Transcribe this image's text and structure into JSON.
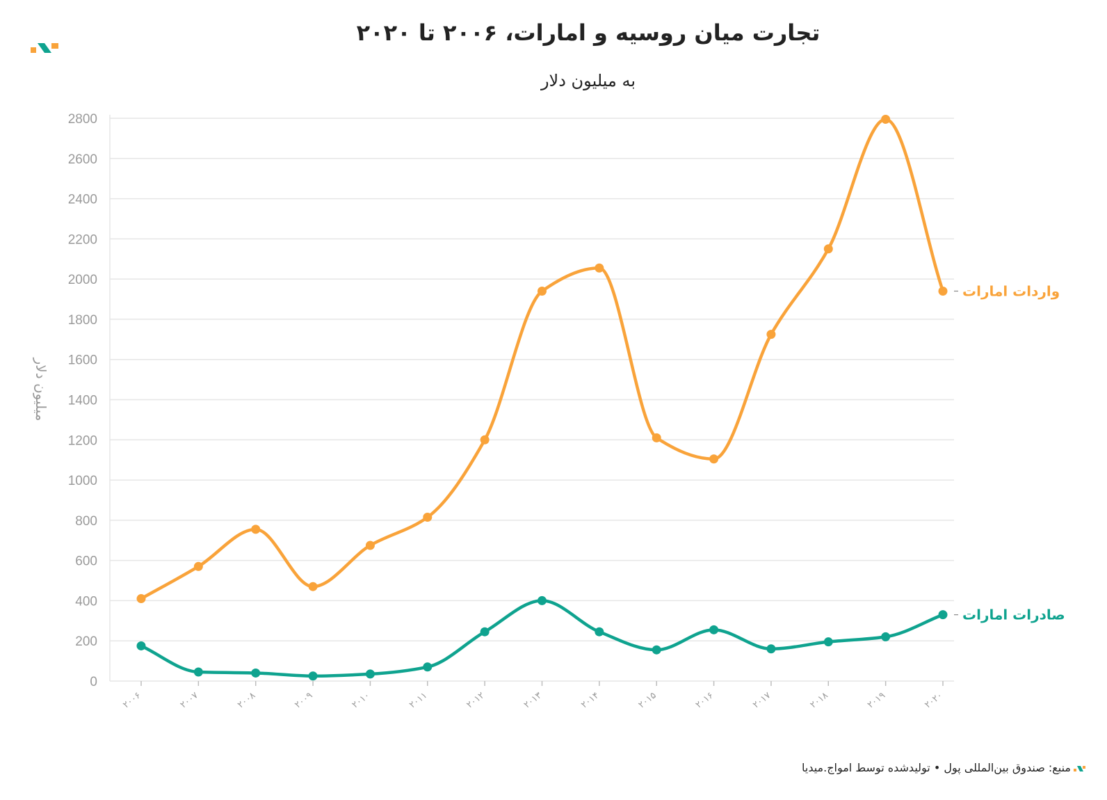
{
  "chart_data": {
    "type": "line",
    "title": "تجارت میان روسیه و امارات، ۲۰۰۶ تا ۲۰۲۰",
    "subtitle": "به میلیون دلار",
    "ylabel": "میلیون دلار",
    "xlabel": "",
    "categories": [
      "۲۰۰۶",
      "۲۰۰۷",
      "۲۰۰۸",
      "۲۰۰۹",
      "۲۰۱۰",
      "۲۰۱۱",
      "۲۰۱۲",
      "۲۰۱۳",
      "۲۰۱۴",
      "۲۰۱۵",
      "۲۰۱۶",
      "۲۰۱۷",
      "۲۰۱۸",
      "۲۰۱۹",
      "۲۰۲۰"
    ],
    "ylim": [
      0,
      2800
    ],
    "yticks": [
      0,
      200,
      400,
      600,
      800,
      1000,
      1200,
      1400,
      1600,
      1800,
      2000,
      2200,
      2400,
      2600,
      2800
    ],
    "grid": true,
    "series": [
      {
        "name": "واردات امارات",
        "color": "#F9A33A",
        "values": [
          410,
          570,
          755,
          470,
          675,
          815,
          1200,
          1940,
          2055,
          1210,
          1105,
          1725,
          2150,
          2795,
          1940
        ]
      },
      {
        "name": "صادرات امارات",
        "color": "#0FA38F",
        "values": [
          175,
          45,
          40,
          25,
          35,
          70,
          245,
          400,
          245,
          155,
          255,
          160,
          195,
          220,
          330
        ]
      }
    ]
  },
  "footer": {
    "text": "منبع: صندوق بین‌المللی پول • تولیدشده توسط امواج.میدیا"
  },
  "brand": {
    "icon": "amwaj-logo-icon",
    "colors": {
      "orange": "#F9A33A",
      "green": "#0FA38F"
    }
  }
}
